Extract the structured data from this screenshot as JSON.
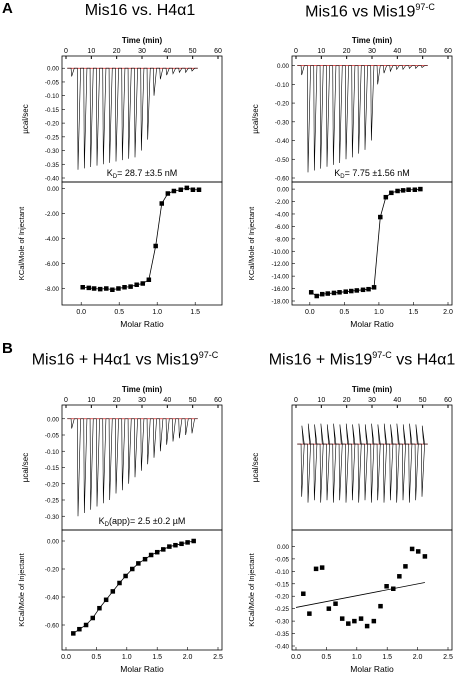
{
  "panel_labels": [
    "A",
    "B"
  ],
  "chart_data": [
    {
      "id": "A1",
      "title": "Mis16 vs. H4α1",
      "type": "isotherm",
      "top": {
        "xlabel": "Time (min)",
        "ylabel": "µcal/sec",
        "xlim": [
          0,
          60
        ],
        "ylim": [
          -0.4,
          0.03
        ],
        "xticks": [
          "0",
          "10",
          "20",
          "30",
          "40",
          "50",
          "60"
        ],
        "yticks": [
          "0.05",
          "0.00",
          "-0.05",
          "-0.10",
          "-0.15",
          "-0.20",
          "-0.25",
          "-0.30",
          "-0.35",
          "-0.40"
        ],
        "peaks_t": [
          2,
          4.5,
          7,
          9.5,
          12,
          14.5,
          17,
          19.5,
          22,
          24.5,
          27,
          29.5,
          32,
          34.5,
          37,
          39.5,
          42,
          44.5,
          47,
          49.5
        ],
        "peaks_h": [
          -0.03,
          -0.37,
          -0.365,
          -0.36,
          -0.355,
          -0.35,
          -0.345,
          -0.34,
          -0.335,
          -0.33,
          -0.325,
          -0.3,
          -0.26,
          -0.1,
          -0.04,
          -0.025,
          -0.02,
          -0.015,
          -0.015,
          -0.01
        ],
        "annotation": "K",
        "annotation_sub": "D",
        "annotation_rest": "= 28.7 ±3.5 nM"
      },
      "bottom": {
        "xlabel": "Molar Ratio",
        "ylabel": "KCal/Mole of Injectant",
        "xlim": [
          -0.2,
          1.8
        ],
        "ylim": [
          -9,
          0.2
        ],
        "xticks": [
          "0.0",
          "0.5",
          "1.0",
          "1.5"
        ],
        "yticks": [
          "0.00",
          "-2.00",
          "-4.00",
          "-6.00",
          "-8.00"
        ],
        "x": [
          0.02,
          0.1,
          0.17,
          0.25,
          0.33,
          0.41,
          0.49,
          0.57,
          0.65,
          0.73,
          0.81,
          0.89,
          0.98,
          1.06,
          1.14,
          1.22,
          1.31,
          1.39,
          1.47,
          1.55
        ],
        "y": [
          -7.9,
          -7.95,
          -8.0,
          -8.05,
          -8.0,
          -8.1,
          -8.0,
          -7.9,
          -7.85,
          -7.7,
          -7.6,
          -7.3,
          -4.6,
          -1.2,
          -0.4,
          -0.2,
          -0.1,
          0.05,
          -0.1,
          -0.1
        ],
        "fit": true
      }
    },
    {
      "id": "A2",
      "title": "Mis16 vs Mis19",
      "title_sup": "97-C",
      "type": "isotherm",
      "top": {
        "xlabel": "Time (min)",
        "ylabel": "µcal/sec",
        "xlim": [
          0,
          60
        ],
        "ylim": [
          -0.6,
          0.03
        ],
        "xticks": [
          "0",
          "10",
          "20",
          "30",
          "40",
          "50",
          "60"
        ],
        "yticks": [
          "0.00",
          "-0.10",
          "-0.20",
          "-0.30",
          "-0.40",
          "-0.50",
          "-0.60"
        ],
        "peaks_t": [
          2,
          4.5,
          7,
          9.5,
          12,
          14.5,
          17,
          19.5,
          22,
          24.5,
          27,
          29.5,
          32,
          34.5,
          37,
          39.5,
          42,
          44.5,
          47,
          49.5
        ],
        "peaks_h": [
          -0.05,
          -0.57,
          -0.56,
          -0.55,
          -0.54,
          -0.53,
          -0.52,
          -0.5,
          -0.49,
          -0.47,
          -0.45,
          -0.4,
          -0.1,
          -0.04,
          -0.03,
          -0.02,
          -0.02,
          -0.015,
          -0.015,
          -0.01
        ],
        "annotation": "K",
        "annotation_sub": "D",
        "annotation_rest": "= 7.75 ±1.56 nM"
      },
      "bottom": {
        "xlabel": "Molar Ratio",
        "ylabel": "KCal/Mole of Injectant",
        "xlim": [
          -0.2,
          2.0
        ],
        "ylim": [
          -18,
          0.5
        ],
        "xticks": [
          "0.0",
          "0.5",
          "1.0",
          "1.5",
          "2.0"
        ],
        "yticks": [
          "0.00",
          "-2.00",
          "-4.00",
          "-6.00",
          "-8.00",
          "-10.00",
          "-12.00",
          "-14.00",
          "-16.00",
          "-18.00"
        ],
        "x": [
          0.02,
          0.1,
          0.18,
          0.26,
          0.35,
          0.43,
          0.52,
          0.6,
          0.68,
          0.77,
          0.85,
          0.93,
          1.02,
          1.1,
          1.18,
          1.27,
          1.35,
          1.43,
          1.52,
          1.6
        ],
        "y": [
          -16.6,
          -17.2,
          -16.9,
          -16.8,
          -16.7,
          -16.6,
          -16.5,
          -16.4,
          -16.3,
          -16.2,
          -16.1,
          -15.8,
          -4.5,
          -1.3,
          -0.6,
          -0.3,
          -0.2,
          -0.1,
          -0.1,
          0.0
        ],
        "fit": true
      }
    },
    {
      "id": "B1",
      "title": "Mis16 + H4α1 vs Mis19",
      "title_sup": "97-C",
      "type": "isotherm",
      "top": {
        "xlabel": "Time (min)",
        "ylabel": "µcal/sec",
        "xlim": [
          0,
          60
        ],
        "ylim": [
          -0.33,
          0.03
        ],
        "xticks": [
          "0",
          "10",
          "20",
          "30",
          "40",
          "50",
          "60"
        ],
        "yticks": [
          "0.05",
          "0.00",
          "-0.05",
          "-0.10",
          "-0.15",
          "-0.20",
          "-0.25",
          "-0.30"
        ],
        "peaks_t": [
          2,
          4.5,
          7,
          9.5,
          12,
          14.5,
          17,
          19.5,
          22,
          24.5,
          27,
          29.5,
          32,
          34.5,
          37,
          39.5,
          42,
          44.5,
          47,
          49.5
        ],
        "peaks_h": [
          -0.03,
          -0.3,
          -0.29,
          -0.28,
          -0.27,
          -0.26,
          -0.25,
          -0.23,
          -0.22,
          -0.2,
          -0.18,
          -0.16,
          -0.14,
          -0.12,
          -0.1,
          -0.08,
          -0.07,
          -0.06,
          -0.05,
          -0.045
        ],
        "annotation": "K",
        "annotation_sub": "D",
        "annotation_rest": "(app)= 2.5 ±0.2 µM"
      },
      "bottom": {
        "xlabel": "Molar Ratio",
        "ylabel": "KCal/Mole of Injectant",
        "xlim": [
          0,
          2.5
        ],
        "ylim": [
          -0.75,
          0.05
        ],
        "xticks": [
          "0.0",
          "0.5",
          "1.0",
          "1.5",
          "2.0",
          "2.5"
        ],
        "yticks": [
          "0.00",
          "-0.20",
          "-0.40",
          "-0.60"
        ],
        "x": [
          0.12,
          0.22,
          0.33,
          0.44,
          0.55,
          0.66,
          0.77,
          0.88,
          0.98,
          1.09,
          1.19,
          1.3,
          1.4,
          1.5,
          1.6,
          1.7,
          1.8,
          1.9,
          2.0,
          2.1
        ],
        "y": [
          -0.66,
          -0.63,
          -0.6,
          -0.55,
          -0.48,
          -0.42,
          -0.36,
          -0.3,
          -0.25,
          -0.2,
          -0.16,
          -0.13,
          -0.1,
          -0.08,
          -0.06,
          -0.04,
          -0.03,
          -0.02,
          -0.01,
          0.0
        ],
        "fit": true
      }
    },
    {
      "id": "B2",
      "title": "Mis16 + Mis19",
      "title_sup": "97-C",
      "title_rest": " vs H4α1",
      "type": "isotherm",
      "top": {
        "xlabel": "Time (min)",
        "ylabel": "µcal/sec",
        "xlim": [
          0,
          60
        ],
        "ylim": [
          -0.07,
          0.03
        ],
        "xticks": [
          "0",
          "10",
          "20",
          "30",
          "40",
          "50",
          "60"
        ],
        "yticks": [],
        "peaks_t": [
          2,
          4.5,
          7,
          9.5,
          12,
          14.5,
          17,
          19.5,
          22,
          24.5,
          27,
          29.5,
          32,
          34.5,
          37,
          39.5,
          42,
          44.5,
          47,
          49.5
        ],
        "peaks_h": [
          -0.045,
          -0.05,
          -0.048,
          -0.05,
          -0.048,
          -0.05,
          -0.048,
          -0.05,
          -0.048,
          -0.05,
          -0.048,
          -0.05,
          -0.048,
          -0.05,
          -0.048,
          -0.05,
          -0.048,
          -0.05,
          -0.048,
          -0.045
        ],
        "annotation": "",
        "annotation_sub": "",
        "annotation_rest": ""
      },
      "bottom": {
        "xlabel": "Molar Ratio",
        "ylabel": "KCal/Mole of Injectant",
        "xlim": [
          0,
          2.5
        ],
        "ylim": [
          -0.4,
          0.05
        ],
        "xticks": [
          "0.0",
          "0.5",
          "1.0",
          "1.5",
          "2.0",
          "2.5"
        ],
        "yticks": [
          "0.00",
          "-0.05",
          "-0.10",
          "-0.15",
          "-0.20",
          "-0.25",
          "-0.30",
          "-0.35",
          "-0.40"
        ],
        "x": [
          0.12,
          0.22,
          0.33,
          0.43,
          0.54,
          0.65,
          0.76,
          0.86,
          0.96,
          1.07,
          1.17,
          1.28,
          1.39,
          1.49,
          1.6,
          1.7,
          1.8,
          1.91,
          2.01,
          2.12
        ],
        "y": [
          -0.19,
          -0.27,
          -0.09,
          -0.085,
          -0.25,
          -0.23,
          -0.29,
          -0.31,
          -0.3,
          -0.29,
          -0.32,
          -0.3,
          -0.24,
          -0.16,
          -0.17,
          -0.12,
          -0.08,
          -0.01,
          -0.02,
          -0.04
        ],
        "fit_line": [
          [
            0.0,
            -0.245
          ],
          [
            2.12,
            -0.145
          ]
        ]
      }
    }
  ]
}
